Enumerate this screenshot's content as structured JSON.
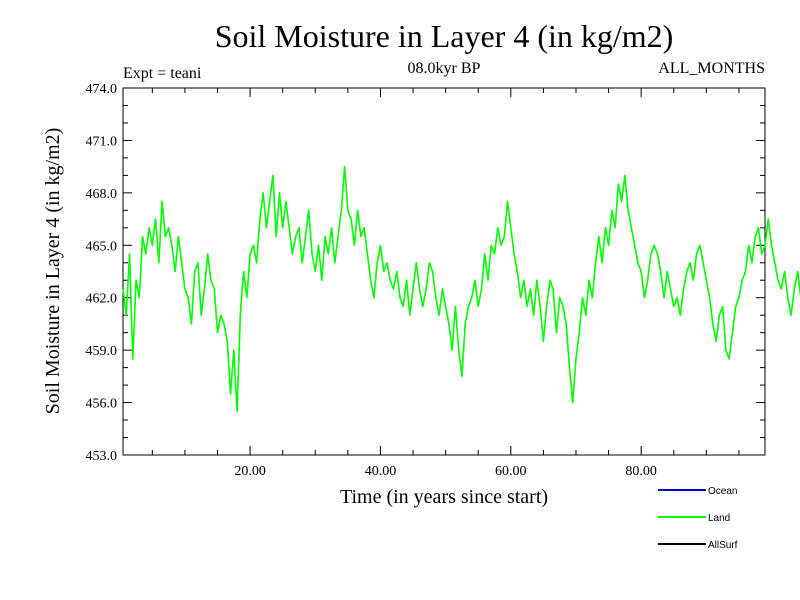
{
  "chart_data": {
    "type": "line",
    "title": "Soil Moisture in Layer 4 (in kg/m2)",
    "subtitle": "08.0kyr BP",
    "left_note": "Expt = teani",
    "right_note": "ALL_MONTHS",
    "xlabel": "Time (in years since start)",
    "ylabel": "Soil Moisture in Layer 4 (in kg/m2)",
    "xlim": [
      0.5,
      99
    ],
    "ylim": [
      453.0,
      474.0
    ],
    "x_ticks": [
      20,
      40,
      60,
      80
    ],
    "x_tick_labels": [
      "20.00",
      "40.00",
      "60.00",
      "80.00"
    ],
    "y_ticks": [
      453,
      456,
      459,
      462,
      465,
      468,
      471,
      474
    ],
    "y_tick_labels": [
      "453.0",
      "456.0",
      "459.0",
      "462.0",
      "465.0",
      "468.0",
      "471.0",
      "474.0"
    ],
    "series_colors": {
      "Ocean": "#0000cc",
      "Land": "#00ff00",
      "AllSurf": "#000000"
    },
    "legend": [
      {
        "name": "Ocean",
        "color": "#0000cc"
      },
      {
        "name": "Land",
        "color": "#00ff00"
      },
      {
        "name": "AllSurf",
        "color": "#000000"
      }
    ],
    "series": [
      {
        "name": "Land",
        "x_start": 0.5,
        "x_step": 0.5,
        "values": [
          462.5,
          461.0,
          464.5,
          458.5,
          463.0,
          462.0,
          465.5,
          464.5,
          466.0,
          465.0,
          466.5,
          464.0,
          467.5,
          465.5,
          466.0,
          465.0,
          463.5,
          465.5,
          464.0,
          462.5,
          462.0,
          460.5,
          463.5,
          464.0,
          461.0,
          462.5,
          464.5,
          463.0,
          462.5,
          460.0,
          461.0,
          460.5,
          459.5,
          456.5,
          459.0,
          455.5,
          461.0,
          463.5,
          462.0,
          464.5,
          465.0,
          464.0,
          466.5,
          468.0,
          466.0,
          467.5,
          469.0,
          465.5,
          468.0,
          466.0,
          467.5,
          466.0,
          464.5,
          465.5,
          466.0,
          464.0,
          465.5,
          467.0,
          464.5,
          463.5,
          465.0,
          463.0,
          465.5,
          464.5,
          466.0,
          464.0,
          465.5,
          467.0,
          469.5,
          467.0,
          466.5,
          465.0,
          467.0,
          465.5,
          466.0,
          464.5,
          463.0,
          462.0,
          464.0,
          465.0,
          463.5,
          464.0,
          463.0,
          462.5,
          463.5,
          462.0,
          461.5,
          463.0,
          461.0,
          462.5,
          464.0,
          462.5,
          461.5,
          462.5,
          464.0,
          463.5,
          462.0,
          461.0,
          462.5,
          461.5,
          460.5,
          459.0,
          461.5,
          459.0,
          457.5,
          460.5,
          461.5,
          462.0,
          463.0,
          461.5,
          462.5,
          464.5,
          463.0,
          465.0,
          464.5,
          466.0,
          465.0,
          465.5,
          467.5,
          466.0,
          464.5,
          463.5,
          462.0,
          463.0,
          461.5,
          462.5,
          461.0,
          463.0,
          461.5,
          459.5,
          461.5,
          463.0,
          462.5,
          460.0,
          462.0,
          461.5,
          460.5,
          458.0,
          456.0,
          458.5,
          460.0,
          462.0,
          461.0,
          463.0,
          462.0,
          464.0,
          465.5,
          464.0,
          466.0,
          465.0,
          467.0,
          466.0,
          468.5,
          467.5,
          469.0,
          467.0,
          466.0,
          465.0,
          464.0,
          463.5,
          462.0,
          463.0,
          464.5,
          465.0,
          464.5,
          463.5,
          462.0,
          463.5,
          462.5,
          461.5,
          462.0,
          461.0,
          462.5,
          463.5,
          464.0,
          463.0,
          464.5,
          465.0,
          464.0,
          463.0,
          462.0,
          460.5,
          459.5,
          461.0,
          461.5,
          459.0,
          458.5,
          460.0,
          461.5,
          462.0,
          463.0,
          463.5,
          465.0,
          464.0,
          465.5,
          466.0,
          464.5,
          465.0,
          466.5,
          465.0,
          464.0,
          463.0,
          462.5,
          463.5,
          462.0,
          461.0,
          462.5,
          463.5,
          462.0,
          461.0,
          462.0,
          463.0,
          464.0,
          465.5,
          466.5,
          467.0,
          465.5,
          467.5,
          466.0,
          466.5,
          465.0,
          466.0,
          467.0,
          466.5,
          468.0,
          466.5,
          467.5,
          466.0,
          467.0,
          466.5,
          465.0,
          466.0,
          465.5,
          464.5,
          466.0,
          464.0,
          465.5,
          466.5,
          465.0,
          464.5,
          463.5,
          464.5,
          465.5,
          466.0,
          465.0,
          464.0,
          465.0,
          465.5,
          464.5,
          465.0,
          466.0,
          467.0,
          466.5,
          468.0,
          467.0,
          466.5,
          465.5,
          466.0,
          467.0,
          468.0,
          467.5,
          466.0,
          467.0,
          465.5,
          466.5,
          465.0,
          464.5,
          466.0,
          465.0,
          464.0,
          465.0,
          466.5,
          465.5,
          464.0,
          465.0,
          466.0,
          465.5,
          466.0,
          465.0,
          464.5,
          465.5,
          465.0,
          464.0,
          466.0,
          466.5,
          465.5,
          466.0,
          467.5,
          468.0,
          469.0,
          468.0,
          470.0,
          471.0,
          468.5,
          467.0,
          466.0,
          465.0,
          466.0,
          465.0,
          463.0,
          464.0
        ]
      }
    ]
  }
}
